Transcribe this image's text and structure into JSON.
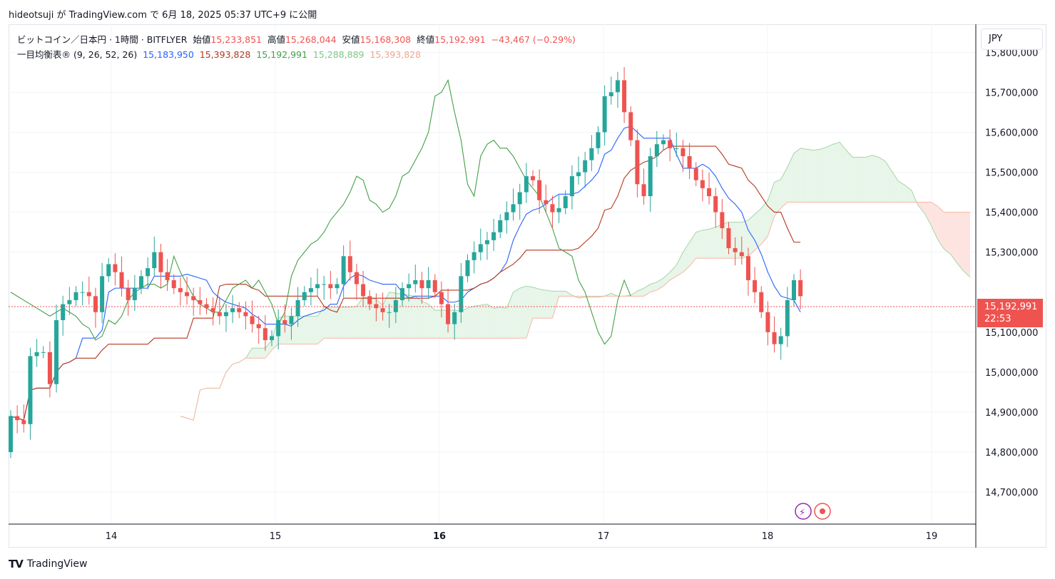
{
  "header": {
    "publish_line": "hideotsuji が TradingView.com で 6月 18, 2025 05:37 UTC+9 に公開"
  },
  "legend": {
    "symbol": "ビットコイン／日本円 · 1時間 · BITFLYER",
    "open_label": "始値",
    "open": "15,233,851",
    "high_label": "高値",
    "high": "15,268,044",
    "low_label": "安値",
    "low": "15,168,308",
    "close_label": "終値",
    "close": "15,192,991",
    "change": "−43,467 (−0.29%)",
    "indicator": "一目均衡表® (9, 26, 52, 26)",
    "tenkan": "15,183,950",
    "kijun": "15,393,828",
    "chikou": "15,192,991",
    "senkou_a": "15,288,889",
    "senkou_b": "15,393,828"
  },
  "axis": {
    "currency": "JPY",
    "last_price": "15,192,991",
    "countdown": "22:53"
  },
  "colors": {
    "up": "#26a69a",
    "down": "#ef5350",
    "tenkan": "#2962ff",
    "kijun": "#b4371c",
    "chikou": "#43a047",
    "senkou_a": "#a5d6a7",
    "senkou_b": "#f7b8a2",
    "cloud_bull": "#e8f5e9",
    "cloud_bear": "#fde4e0"
  },
  "footer": {
    "brand": "TradingView"
  },
  "chart_data": {
    "type": "candlestick",
    "ylim": [
      14620000,
      15870000
    ],
    "yticks": [
      {
        "value": 15800000,
        "label": "15,800,000"
      },
      {
        "value": 15700000,
        "label": "15,700,000"
      },
      {
        "value": 15600000,
        "label": "15,600,000"
      },
      {
        "value": 15500000,
        "label": "15,500,000"
      },
      {
        "value": 15400000,
        "label": "15,400,000"
      },
      {
        "value": 15300000,
        "label": "15,300,000"
      },
      {
        "value": 15100000,
        "label": "15,100,000"
      },
      {
        "value": 15000000,
        "label": "15,000,000"
      },
      {
        "value": 14900000,
        "label": "14,900,000"
      },
      {
        "value": 14800000,
        "label": "14,800,000"
      },
      {
        "value": 14700000,
        "label": "14,700,000"
      }
    ],
    "xticks": [
      {
        "label": "14",
        "day": 14,
        "bold": false
      },
      {
        "label": "15",
        "day": 15,
        "bold": false
      },
      {
        "label": "16",
        "day": 16,
        "bold": true
      },
      {
        "label": "17",
        "day": 17,
        "bold": false
      },
      {
        "label": "18",
        "day": 18,
        "bold": false
      },
      {
        "label": "19",
        "day": 19,
        "bold": false
      }
    ],
    "ohlc_close_path": [
      14890000,
      14880000,
      14870000,
      15040000,
      15050000,
      15050000,
      14970000,
      15130000,
      15170000,
      15180000,
      15200000,
      15200000,
      15190000,
      15150000,
      15240000,
      15270000,
      15250000,
      15210000,
      15180000,
      15210000,
      15240000,
      15260000,
      15300000,
      15250000,
      15230000,
      15210000,
      15200000,
      15190000,
      15180000,
      15170000,
      15160000,
      15150000,
      15140000,
      15150000,
      15160000,
      15150000,
      15140000,
      15120000,
      15110000,
      15080000,
      15090000,
      15130000,
      15120000,
      15140000,
      15180000,
      15200000,
      15210000,
      15220000,
      15220000,
      15210000,
      15220000,
      15290000,
      15250000,
      15220000,
      15190000,
      15170000,
      15160000,
      15150000,
      15150000,
      15180000,
      15210000,
      15220000,
      15230000,
      15210000,
      15230000,
      15200000,
      15170000,
      15120000,
      15150000,
      15240000,
      15280000,
      15300000,
      15320000,
      15330000,
      15350000,
      15380000,
      15400000,
      15420000,
      15450000,
      15490000,
      15480000,
      15430000,
      15420000,
      15400000,
      15410000,
      15440000,
      15490000,
      15500000,
      15530000,
      15560000,
      15600000,
      15690000,
      15700000,
      15730000,
      15650000,
      15580000,
      15470000,
      15440000,
      15540000,
      15570000,
      15580000,
      15560000,
      15560000,
      15540000,
      15510000,
      15480000,
      15460000,
      15440000,
      15400000,
      15360000,
      15310000,
      15300000,
      15290000,
      15230000,
      15200000,
      15150000,
      15100000,
      15070000,
      15090000,
      15180000,
      15230000,
      15190000
    ]
  }
}
